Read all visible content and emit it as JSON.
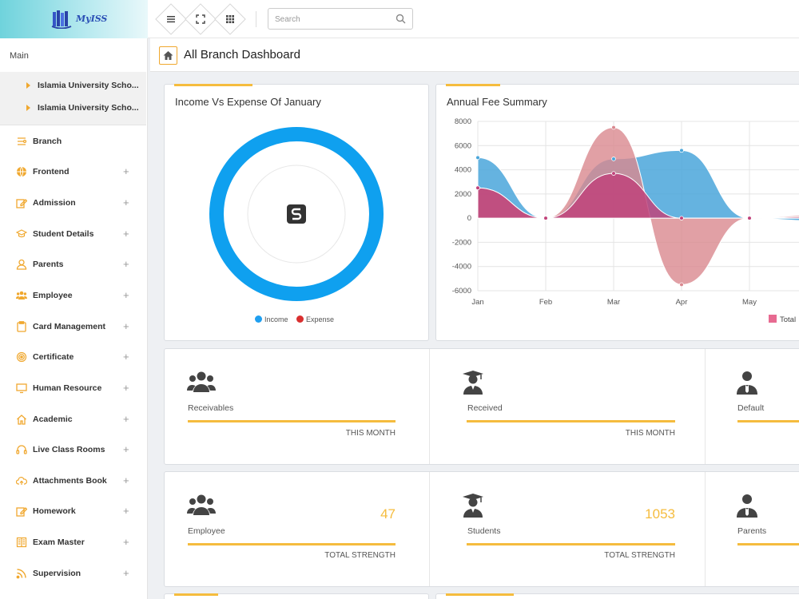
{
  "brand": {
    "name": "MyISS"
  },
  "search": {
    "placeholder": "Search"
  },
  "sidebar": {
    "section_label": "Main",
    "branches": [
      "Islamia University Scho...",
      "Islamia University Scho..."
    ],
    "items": [
      {
        "label": "Branch",
        "icon": "branch-icon",
        "expandable": false
      },
      {
        "label": "Frontend",
        "icon": "globe-icon",
        "expandable": true
      },
      {
        "label": "Admission",
        "icon": "edit-icon",
        "expandable": true
      },
      {
        "label": "Student Details",
        "icon": "graduation-cap-icon",
        "expandable": true
      },
      {
        "label": "Parents",
        "icon": "user-icon",
        "expandable": true
      },
      {
        "label": "Employee",
        "icon": "users-icon",
        "expandable": true
      },
      {
        "label": "Card Management",
        "icon": "clipboard-icon",
        "expandable": true
      },
      {
        "label": "Certificate",
        "icon": "certificate-icon",
        "expandable": true
      },
      {
        "label": "Human Resource",
        "icon": "monitor-icon",
        "expandable": true
      },
      {
        "label": "Academic",
        "icon": "home-icon",
        "expandable": true
      },
      {
        "label": "Live Class Rooms",
        "icon": "headset-icon",
        "expandable": true
      },
      {
        "label": "Attachments Book",
        "icon": "cloud-upload-icon",
        "expandable": true
      },
      {
        "label": "Homework",
        "icon": "edit-icon",
        "expandable": true
      },
      {
        "label": "Exam Master",
        "icon": "book-icon",
        "expandable": true
      },
      {
        "label": "Supervision",
        "icon": "rss-icon",
        "expandable": true
      }
    ],
    "plus_glyph": "+"
  },
  "page": {
    "title": "All Branch Dashboard"
  },
  "income_panel": {
    "title": "Income Vs Expense Of January",
    "legend": [
      {
        "label": "Income",
        "color": "#1f9ff0"
      },
      {
        "label": "Expense",
        "color": "#d92f2f"
      }
    ]
  },
  "fee_panel": {
    "title": "Annual Fee Summary",
    "legend_label": "Total"
  },
  "chart_data": {
    "type": "area",
    "categories": [
      "Jan",
      "Feb",
      "Mar",
      "Apr",
      "May"
    ],
    "ylim": [
      -6000,
      8000
    ],
    "yticks": [
      "8000",
      "6000",
      "4000",
      "2000",
      "0",
      "-2000",
      "-4000",
      "-6000"
    ],
    "grid": true,
    "legend_position": "bottom-right",
    "series": [
      {
        "color": "#4aa6da",
        "values": [
          5000,
          0,
          4900,
          5600,
          0
        ]
      },
      {
        "color": "#d9888f",
        "values": [
          2500,
          0,
          7500,
          -5500,
          0
        ]
      },
      {
        "name": "Total",
        "color": "#c0437a",
        "values": [
          2500,
          0,
          3700,
          0,
          0
        ]
      }
    ]
  },
  "stats_row1": [
    {
      "label": "Receivables",
      "sub": "THIS MONTH",
      "value": "",
      "icon": "users-icon"
    },
    {
      "label": "Received",
      "sub": "THIS MONTH",
      "value": "",
      "icon": "graduate-icon"
    },
    {
      "label": "Default",
      "sub": "",
      "value": "",
      "icon": "businessman-icon"
    }
  ],
  "stats_row2": [
    {
      "label": "Employee",
      "sub": "TOTAL STRENGTH",
      "value": "47",
      "icon": "users-icon"
    },
    {
      "label": "Students",
      "sub": "TOTAL STRENGTH",
      "value": "1053",
      "icon": "graduate-icon"
    },
    {
      "label": "Parents",
      "sub": "",
      "value": "",
      "icon": "businessman-icon"
    }
  ]
}
